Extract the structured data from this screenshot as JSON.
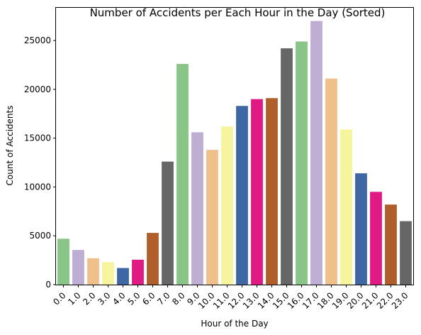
{
  "chart_data": {
    "type": "bar",
    "title": "Number of Accidents per Each Hour in the Day (Sorted)",
    "xlabel": "Hour of the Day",
    "ylabel": "Count of Accidents",
    "categories": [
      "0.0",
      "1.0",
      "2.0",
      "3.0",
      "4.0",
      "5.0",
      "6.0",
      "7.0",
      "8.0",
      "9.0",
      "10.0",
      "11.0",
      "12.0",
      "13.0",
      "14.0",
      "15.0",
      "16.0",
      "17.0",
      "18.0",
      "19.0",
      "20.0",
      "21.0",
      "22.0",
      "23.0"
    ],
    "values": [
      4700,
      3550,
      2700,
      2300,
      1700,
      2550,
      5300,
      12600,
      22600,
      15600,
      13800,
      16200,
      18300,
      19000,
      19100,
      24200,
      24900,
      27000,
      21100,
      15900,
      11400,
      9500,
      8200,
      6500
    ],
    "colors": [
      "#88c587",
      "#beaed4",
      "#f0c08b",
      "#f6f59d",
      "#3d68a3",
      "#e01a82",
      "#b05f2a",
      "#666666",
      "#88c587",
      "#beaed4",
      "#f0c08b",
      "#f6f59d",
      "#3d68a3",
      "#e01a82",
      "#b05f2a",
      "#666666",
      "#88c587",
      "#beaed4",
      "#f0c08b",
      "#f6f59d",
      "#3d68a3",
      "#e01a82",
      "#b05f2a",
      "#666666"
    ],
    "ylim": [
      0,
      28350
    ],
    "yticks": [
      0,
      5000,
      10000,
      15000,
      20000,
      25000
    ],
    "ytick_labels": [
      "0",
      "5000",
      "10000",
      "15000",
      "20000",
      "25000"
    ],
    "grid": false,
    "legend": "none"
  }
}
